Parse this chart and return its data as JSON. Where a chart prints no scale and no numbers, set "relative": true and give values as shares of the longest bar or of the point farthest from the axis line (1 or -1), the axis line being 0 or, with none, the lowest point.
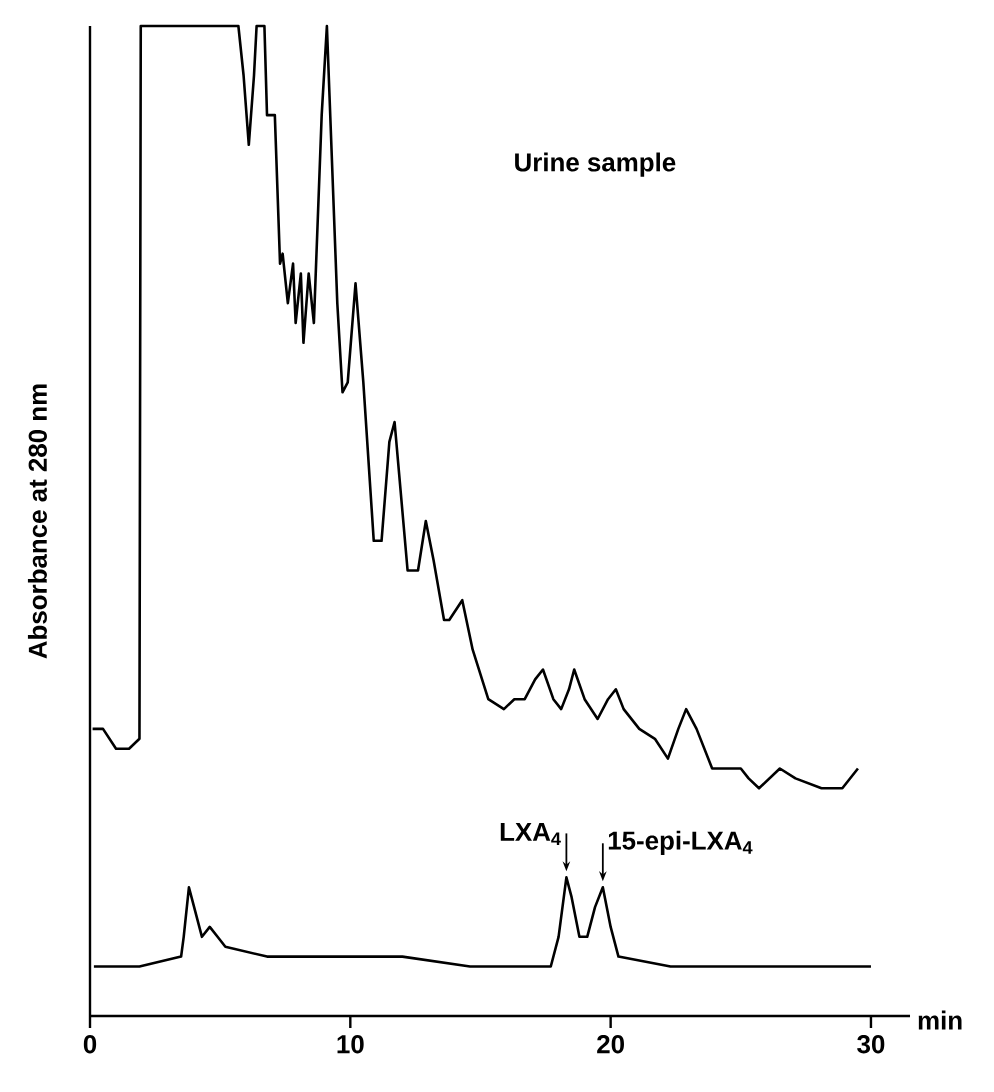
{
  "chart_data": {
    "type": "line",
    "relative": true,
    "xlabel": "min",
    "ylabel": "Absorbance at 280 nm",
    "xlim": [
      0,
      31.5
    ],
    "xticks": [
      0,
      10,
      20,
      30
    ],
    "series": [
      {
        "name": "Urine sample",
        "color": "#000000",
        "x": [
          0.1,
          0.5,
          1.0,
          1.5,
          1.9,
          1.95,
          5.7,
          5.9,
          6.1,
          6.3,
          6.4,
          6.7,
          6.8,
          7.1,
          7.3,
          7.4,
          7.6,
          7.8,
          7.9,
          8.1,
          8.2,
          8.4,
          8.6,
          8.9,
          9.1,
          9.2,
          9.5,
          9.7,
          9.9,
          10.2,
          10.5,
          10.9,
          11.2,
          11.5,
          11.7,
          11.9,
          12.2,
          12.6,
          12.9,
          13.2,
          13.6,
          13.8,
          14.3,
          14.7,
          15.3,
          15.9,
          16.3,
          16.7,
          17.1,
          17.4,
          17.8,
          18.1,
          18.4,
          18.6,
          19.0,
          19.5,
          19.9,
          20.2,
          20.5,
          21.1,
          21.7,
          22.2,
          22.6,
          22.9,
          23.3,
          23.9,
          24.4,
          25.0,
          25.3,
          25.7,
          26.1,
          26.5,
          27.1,
          28.1,
          28.9,
          29.5
        ],
        "values": [
          0.29,
          0.29,
          0.27,
          0.27,
          0.28,
          1.0,
          1.0,
          0.95,
          0.88,
          0.95,
          1.0,
          1.0,
          0.91,
          0.91,
          0.76,
          0.77,
          0.72,
          0.76,
          0.7,
          0.75,
          0.68,
          0.75,
          0.7,
          0.91,
          1.0,
          0.93,
          0.72,
          0.63,
          0.64,
          0.74,
          0.64,
          0.48,
          0.48,
          0.58,
          0.6,
          0.54,
          0.45,
          0.45,
          0.5,
          0.46,
          0.4,
          0.4,
          0.42,
          0.37,
          0.32,
          0.31,
          0.32,
          0.32,
          0.34,
          0.35,
          0.32,
          0.31,
          0.33,
          0.35,
          0.32,
          0.3,
          0.32,
          0.33,
          0.31,
          0.29,
          0.28,
          0.26,
          0.29,
          0.31,
          0.29,
          0.25,
          0.25,
          0.25,
          0.24,
          0.23,
          0.24,
          0.25,
          0.24,
          0.23,
          0.23,
          0.25
        ]
      },
      {
        "color": "#000000",
        "x": [
          0.15,
          1.9,
          3.5,
          3.6,
          3.8,
          4.0,
          4.3,
          4.6,
          4.9,
          5.2,
          6.8,
          9.5,
          12.0,
          14.6,
          17.7,
          18.0,
          18.3,
          18.5,
          18.8,
          19.1,
          19.4,
          19.7,
          20.0,
          20.3,
          22.3,
          30.0
        ],
        "values": [
          0.05,
          0.05,
          0.06,
          0.08,
          0.13,
          0.11,
          0.08,
          0.09,
          0.08,
          0.07,
          0.06,
          0.06,
          0.06,
          0.05,
          0.05,
          0.08,
          0.14,
          0.12,
          0.08,
          0.08,
          0.11,
          0.13,
          0.09,
          0.06,
          0.05,
          0.05
        ]
      }
    ],
    "annotations": [
      {
        "text": "LXA$_{4}$",
        "x": 18.3,
        "y": 0.14
      },
      {
        "text": "15-epi-LXA$_{4}$",
        "x": 19.7,
        "y": 0.13
      }
    ]
  }
}
